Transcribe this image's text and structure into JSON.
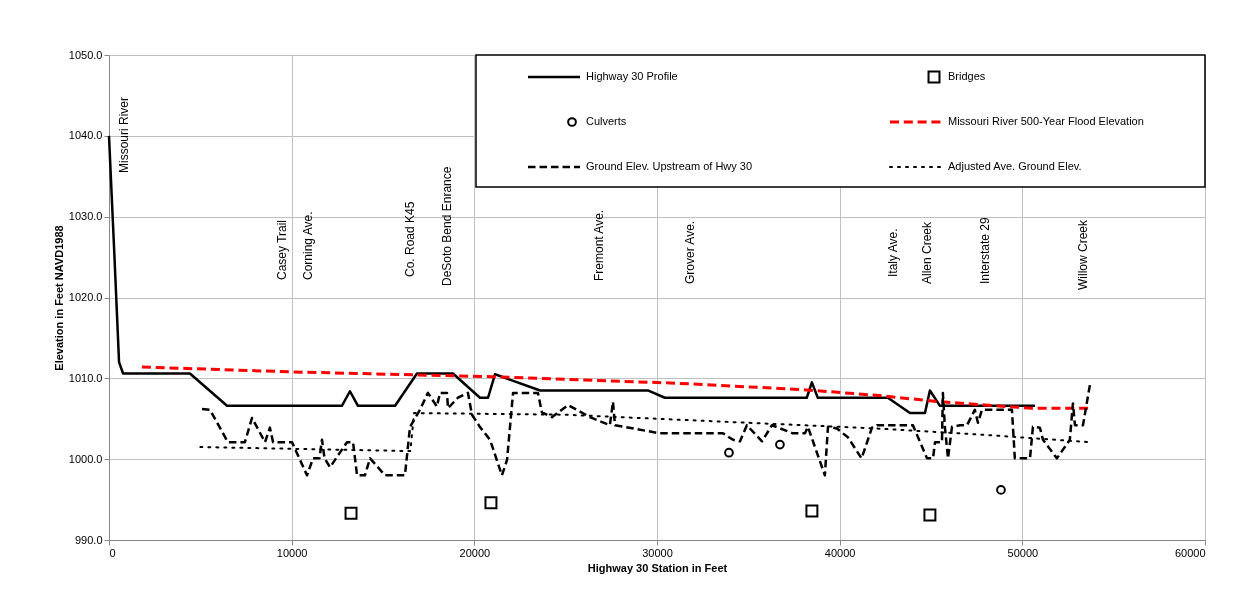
{
  "chart_data": {
    "type": "line",
    "xlabel": "Highway 30 Station in Feet",
    "ylabel": "Elevation in Feet NAVD1988",
    "xlim": [
      0,
      60000
    ],
    "xticks": [
      0,
      10000,
      20000,
      30000,
      40000,
      50000,
      60000
    ],
    "ylim": [
      990,
      1050
    ],
    "yticks": [
      {
        "value": 990,
        "label": "990.0"
      },
      {
        "value": 1000,
        "label": "1000.0"
      },
      {
        "value": 1010,
        "label": "1010.0"
      },
      {
        "value": 1020,
        "label": "1020.0"
      },
      {
        "value": 1030,
        "label": "1030.0"
      },
      {
        "value": 1040,
        "label": "1040.0"
      },
      {
        "value": 1050,
        "label": "1050.0"
      }
    ],
    "grid": true,
    "legend": "top right",
    "series": [
      {
        "name": "Highway 30 Profile",
        "color": "#000000",
        "line_style": "solid",
        "x": [
          0,
          300,
          550,
          770,
          4430,
          6460,
          12750,
          13190,
          13630,
          15660,
          16860,
          18830,
          20310,
          20750,
          21130,
          23600,
          29500,
          30430,
          38200,
          38480,
          38800,
          42640,
          43850,
          44670,
          44940,
          45490,
          50690
        ],
        "values": [
          1040,
          1025,
          1012,
          1010.6,
          1010.6,
          1006.6,
          1006.6,
          1008.4,
          1006.6,
          1006.6,
          1010.6,
          1010.6,
          1007.6,
          1007.6,
          1010.5,
          1008.5,
          1008.5,
          1007.6,
          1007.6,
          1009.5,
          1007.6,
          1007.6,
          1005.7,
          1005.7,
          1008.5,
          1006.6,
          1006.6
        ]
      },
      {
        "name": "Bridges",
        "type": "scatter",
        "marker": "square",
        "color": "#000000",
        "x": [
          13250,
          20910,
          38480,
          44940
        ],
        "values": [
          993.3,
          994.6,
          993.6,
          993.1
        ]
      },
      {
        "name": "Culverts",
        "type": "scatter",
        "marker": "circle",
        "color": "#000000",
        "x": [
          33940,
          36730,
          48830
        ],
        "values": [
          1000.8,
          1001.8,
          996.2
        ]
      },
      {
        "name": "Missouri River 500-Year Flood Elevation",
        "color": "#ff0000",
        "line_style": "dashed",
        "x": [
          1800,
          10000,
          21000,
          31000,
          38000,
          42000,
          45500,
          50500,
          53700
        ],
        "values": [
          1011.4,
          1010.8,
          1010.2,
          1009.4,
          1008.6,
          1007.9,
          1007.1,
          1006.3,
          1006.3
        ]
      },
      {
        "name": "Ground Elev. Upstream of Hwy 30",
        "color": "#000000",
        "line_style": "dashed",
        "x": [
          5090,
          5530,
          6510,
          7440,
          7830,
          8540,
          8810,
          8980,
          10020,
          10840,
          11170,
          11520,
          11660,
          11800,
          12100,
          13030,
          13360,
          13580,
          14010,
          14290,
          15110,
          16200,
          16480,
          17020,
          17460,
          17950,
          18120,
          18500,
          18560,
          19100,
          19650,
          19870,
          20300,
          20860,
          21510,
          21790,
          22120,
          23480,
          23700,
          24250,
          25130,
          26330,
          27420,
          27590,
          27700,
          30160,
          33610,
          34160,
          34540,
          34920,
          35750,
          36290,
          37440,
          38100,
          38260,
          39190,
          39360,
          39850,
          40450,
          41200,
          41770,
          42040,
          44010,
          44780,
          45110,
          45220,
          45600,
          45650,
          45760,
          45930,
          46150,
          46580,
          46970,
          47400,
          47570,
          47790,
          49430,
          49590,
          50420,
          50580,
          50960,
          51130,
          51890,
          52600,
          52770,
          52880,
          53320,
          53700
        ],
        "values": [
          1006.2,
          1006.1,
          1002.1,
          1002.1,
          1005.1,
          1002.1,
          1003.9,
          1002.1,
          1002.1,
          998.0,
          1000.1,
          1000.1,
          1002.4,
          1000.1,
          999.0,
          1002.1,
          1002.1,
          998.0,
          998.0,
          1000.1,
          998.0,
          998.0,
          1004.0,
          1006.1,
          1008.2,
          1006.5,
          1008.2,
          1008.2,
          1006.3,
          1007.6,
          1008.2,
          1005.5,
          1004.0,
          1002.4,
          998.0,
          999.9,
          1008.2,
          1008.2,
          1005.8,
          1005.2,
          1006.7,
          1005.2,
          1004.2,
          1007.1,
          1004.2,
          1003.2,
          1003.2,
          1002.4,
          1002.2,
          1004.2,
          1002.2,
          1004.2,
          1003.2,
          1003.2,
          1004.0,
          998.0,
          1004.0,
          1003.8,
          1002.7,
          1000.1,
          1003.9,
          1004.2,
          1004.2,
          1000.1,
          1000.1,
          1002.1,
          1002.1,
          1008.2,
          1004.0,
          1000.1,
          1004.0,
          1004.2,
          1004.2,
          1006.1,
          1004.5,
          1006.1,
          1006.1,
          1000.1,
          1000.1,
          1004.0,
          1003.9,
          1002.4,
          1000.1,
          1002.4,
          1006.9,
          1004.2,
          1004.2,
          1009.2
        ]
      },
      {
        "name": "Adjusted Ave. Ground Elev.",
        "color": "#000000",
        "line_style": "dotted",
        "x": [
          5000,
          16500,
          16700,
          25000,
          35000,
          42000,
          48000,
          53700
        ],
        "values": [
          1001.5,
          1001.0,
          1005.7,
          1005.5,
          1004.5,
          1003.8,
          1003.0,
          1002.1
        ]
      }
    ],
    "annotations": [
      "Missouri River",
      "Casey Trail",
      "Corning Ave.",
      "Co. Road K45",
      "DeSoto Bend Enrance",
      "Fremont Ave.",
      "Grover Ave.",
      "Italy Ave.",
      "Allen Creek",
      "Interstate 29",
      "Willow Creek"
    ]
  }
}
